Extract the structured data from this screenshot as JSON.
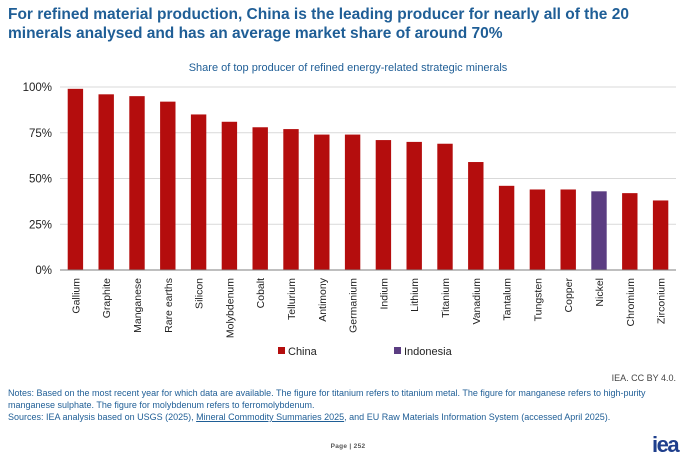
{
  "headline": "For refined material production, China is the leading producer for nearly all of the 20 minerals analysed and has an average market share of around 70%",
  "chart_data": {
    "type": "bar",
    "title": "Share of top producer of refined energy-related strategic minerals",
    "xlabel": "",
    "ylabel": "",
    "ylim": [
      0,
      100
    ],
    "yticks": [
      "0%",
      "25%",
      "50%",
      "75%",
      "100%"
    ],
    "categories": [
      "Gallium",
      "Graphite",
      "Manganese",
      "Rare earths",
      "Silicon",
      "Molybdenum",
      "Cobalt",
      "Tellurium",
      "Antimony",
      "Germanium",
      "Indium",
      "Lithium",
      "Titanium",
      "Vanadium",
      "Tantalum",
      "Tungsten",
      "Copper",
      "Nickel",
      "Chromium",
      "Zirconium"
    ],
    "values": [
      99,
      96,
      95,
      92,
      85,
      81,
      78,
      77,
      74,
      74,
      71,
      70,
      69,
      59,
      46,
      44,
      44,
      43,
      42,
      38
    ],
    "producer": [
      "China",
      "China",
      "China",
      "China",
      "China",
      "China",
      "China",
      "China",
      "China",
      "China",
      "China",
      "China",
      "China",
      "China",
      "China",
      "China",
      "China",
      "Indonesia",
      "China",
      "China"
    ],
    "legend": [
      {
        "name": "China",
        "color": "#b40d0d"
      },
      {
        "name": "Indonesia",
        "color": "#5b3d82"
      }
    ],
    "grid": true
  },
  "credit": "IEA. CC BY 4.0.",
  "notes": {
    "notes_text": "Notes: Based on the most recent year for which data are available. The figure for titanium refers to titanium metal. The figure for manganese refers to high-purity manganese sulphate. The figure for molybdenum refers to ferromolybdenum.",
    "sources_prefix": "Sources: IEA analysis based on USGS (2025), ",
    "sources_link": "Mineral Commodity Summaries 2025",
    "sources_suffix": ", and EU Raw Materials Information System (accessed April 2025)."
  },
  "page": {
    "label": "Page | 252"
  },
  "logo": "iea"
}
